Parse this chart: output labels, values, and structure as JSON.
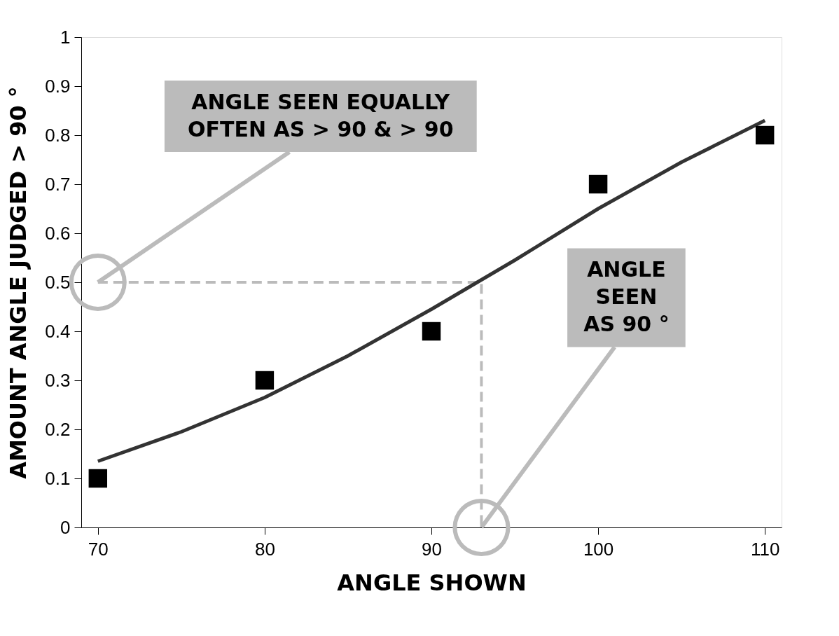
{
  "chart_data": {
    "type": "scatter",
    "xlabel": "ANGLE SHOWN",
    "ylabel": "AMOUNT ANGLE JUDGED >  90 °",
    "xlim": [
      69,
      111
    ],
    "ylim": [
      0,
      1
    ],
    "xticks": [
      70,
      80,
      90,
      100,
      110
    ],
    "yticks": [
      0,
      0.1,
      0.2,
      0.3,
      0.4,
      0.5,
      0.6,
      0.7,
      0.8,
      0.9,
      1
    ],
    "grid": false,
    "series": [
      {
        "type": "line",
        "color": "#bbbbbb",
        "line_style": "dashed",
        "x": [
          70,
          93,
          93
        ],
        "values": [
          0.5,
          0.5,
          0
        ]
      },
      {
        "type": "line",
        "color": "#333333",
        "line_style": "solid",
        "x": [
          70,
          75,
          80,
          85,
          90,
          95,
          100,
          105,
          110
        ],
        "values": [
          0.135,
          0.195,
          0.265,
          0.35,
          0.445,
          0.545,
          0.65,
          0.745,
          0.83
        ]
      },
      {
        "color": "#000000",
        "marker": "square",
        "x": [
          70,
          80,
          90,
          100,
          110
        ],
        "values": [
          0.1,
          0.3,
          0.4,
          0.7,
          0.8
        ]
      }
    ],
    "annotations": [
      {
        "text": "ANGLE SEEN EQUALLY\nOFTEN AS > 90  & > 90",
        "x": 70,
        "y": 0.5
      },
      {
        "text": "ANGLE\nSEEN\nAS 90 °",
        "x": 93,
        "y": 0
      }
    ]
  }
}
